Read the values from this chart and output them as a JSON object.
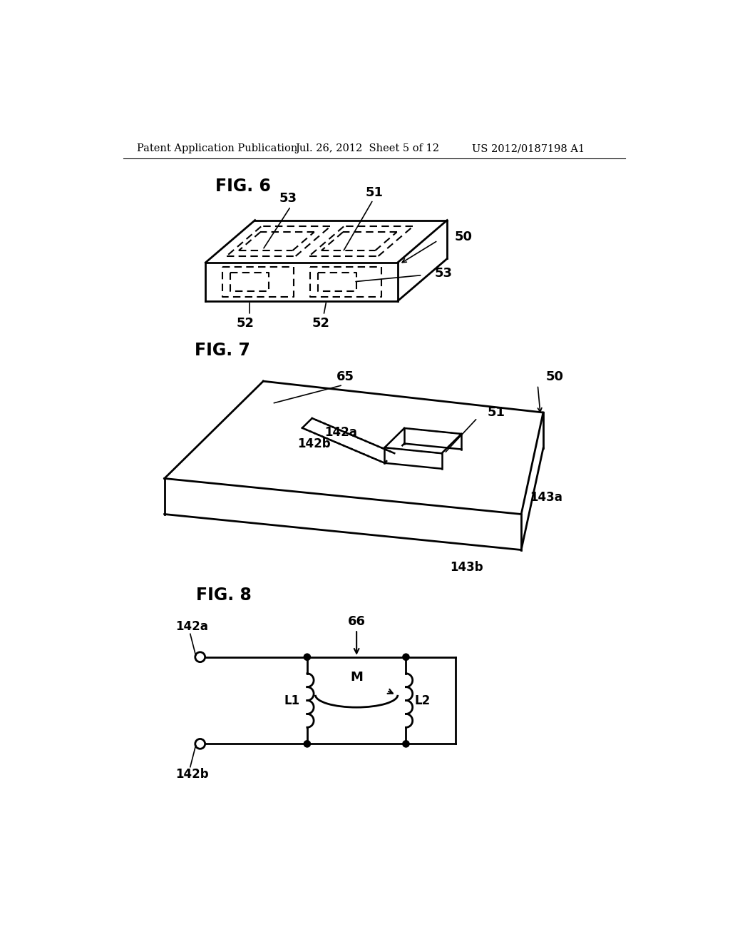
{
  "background_color": "#ffffff",
  "header_left": "Patent Application Publication",
  "header_center": "Jul. 26, 2012  Sheet 5 of 12",
  "header_right": "US 2012/0187198 A1",
  "fig6_label": "FIG. 6",
  "fig7_label": "FIG. 7",
  "fig8_label": "FIG. 8",
  "line_color": "#000000",
  "text_color": "#000000"
}
